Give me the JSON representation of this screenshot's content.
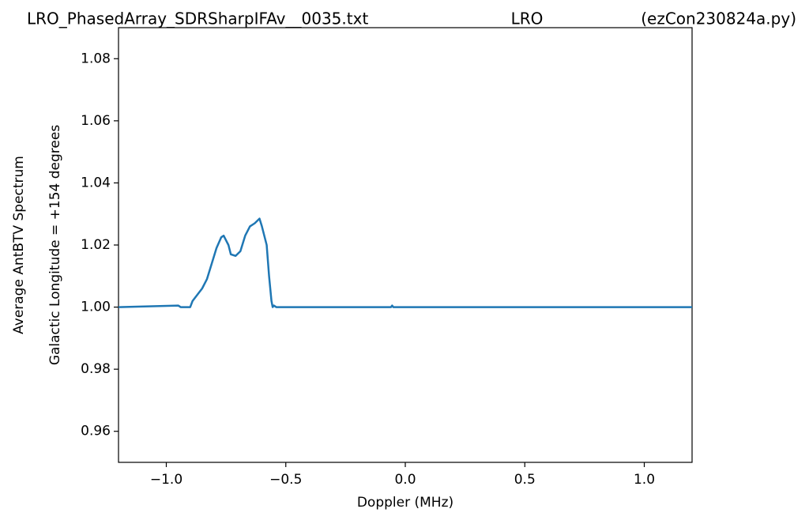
{
  "chart_data": {
    "type": "line",
    "title_parts": [
      "LRO_PhasedArray_SDRSharpIFAv__0035.txt",
      "LRO",
      "(ezCon230824a.py)"
    ],
    "x_label": "Doppler (MHz)",
    "y_label": [
      "Average AntBTV Spectrum",
      "Galactic Longitude = +154 degrees"
    ],
    "x": [
      -1.2,
      -0.95,
      -0.94,
      -0.9,
      -0.89,
      -0.87,
      -0.85,
      -0.83,
      -0.81,
      -0.79,
      -0.77,
      -0.76,
      -0.74,
      -0.73,
      -0.71,
      -0.69,
      -0.67,
      -0.65,
      -0.63,
      -0.61,
      -0.6,
      -0.58,
      -0.57,
      -0.56,
      -0.555,
      -0.55,
      -0.54,
      -0.06,
      -0.055,
      -0.05,
      1.2
    ],
    "series": [
      {
        "name": "spectrum",
        "color": "#1f77b4",
        "values": [
          1.0,
          1.0005,
          1.0,
          1.0,
          1.002,
          1.004,
          1.006,
          1.009,
          1.014,
          1.019,
          1.0225,
          1.023,
          1.02,
          1.017,
          1.0165,
          1.018,
          1.023,
          1.026,
          1.027,
          1.0285,
          1.026,
          1.02,
          1.01,
          1.002,
          1.0,
          1.0005,
          1.0,
          1.0,
          1.0005,
          1.0,
          1.0
        ]
      }
    ],
    "xlim": [
      -1.2,
      1.2
    ],
    "ylim": [
      0.95,
      1.09
    ],
    "xticks": [
      {
        "value": -1,
        "label": "−1.0"
      },
      {
        "value": -0.5,
        "label": "−0.5"
      },
      {
        "value": 0,
        "label": "0.0"
      },
      0.5,
      {
        "value": 1,
        "label": "1.0"
      }
    ],
    "yticks": [
      0.96,
      0.98,
      {
        "value": 1,
        "label": "1.00"
      },
      1.02,
      1.04,
      1.06,
      1.08
    ]
  }
}
